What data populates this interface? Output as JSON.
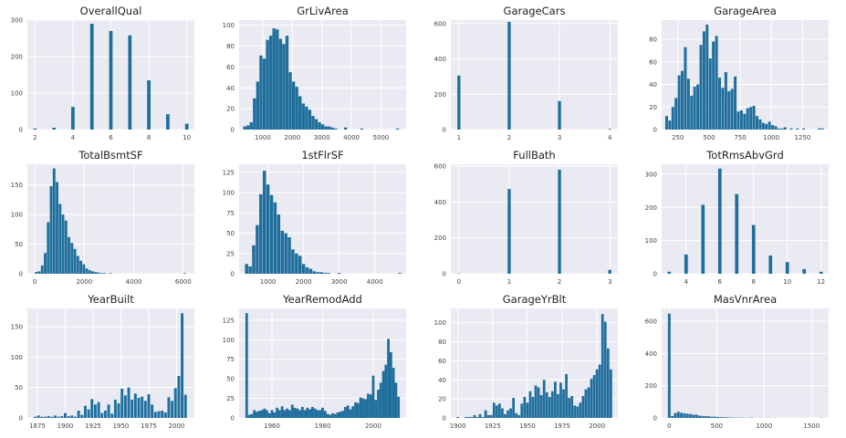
{
  "style": {
    "plot_bg": "#eaeaf2",
    "grid": "#ffffff",
    "bar": "#1f6e9c",
    "text": "#222222",
    "tick": "#444444"
  },
  "chart_data": [
    {
      "type": "bar",
      "title": "OverallQual",
      "grid": true,
      "xlim": [
        1.6,
        10.4
      ],
      "ylim": [
        0,
        300
      ],
      "xticks": [
        2,
        4,
        6,
        8,
        10
      ],
      "yticks": [
        0,
        100,
        200,
        300
      ],
      "bar_width": 0.18,
      "x": [
        2,
        3,
        4,
        5,
        6,
        7,
        8,
        9,
        10
      ],
      "values": [
        3,
        5,
        62,
        290,
        270,
        258,
        135,
        42,
        16
      ]
    },
    {
      "type": "bar",
      "title": "GrLivArea",
      "grid": true,
      "xlim": [
        200,
        5850
      ],
      "ylim": [
        0,
        105
      ],
      "xticks": [
        1000,
        2000,
        3000,
        4000,
        5000
      ],
      "yticks": [
        0,
        20,
        40,
        60,
        80,
        100
      ],
      "bar_width": 104,
      "x": [
        390,
        500,
        610,
        720,
        830,
        940,
        1050,
        1160,
        1270,
        1380,
        1490,
        1600,
        1710,
        1820,
        1930,
        2040,
        2150,
        2260,
        2370,
        2480,
        2590,
        2700,
        2810,
        2920,
        3030,
        3140,
        3250,
        3360,
        3470,
        3580,
        3690,
        3800,
        3910,
        4020,
        4130,
        4240,
        4350,
        4460,
        4570,
        4680,
        4790,
        4900,
        5010,
        5120,
        5230,
        5340,
        5450,
        5560
      ],
      "values": [
        3,
        4,
        7,
        30,
        46,
        71,
        68,
        86,
        90,
        97,
        96,
        87,
        82,
        90,
        55,
        46,
        41,
        32,
        25,
        22,
        19,
        13,
        10,
        7,
        5,
        3,
        3,
        2,
        1,
        0,
        0,
        2,
        0,
        0,
        0,
        0,
        1,
        0,
        0,
        0,
        0,
        0,
        0,
        0,
        0,
        0,
        0,
        1
      ]
    },
    {
      "type": "bar",
      "title": "GarageCars",
      "grid": true,
      "xlim": [
        0.84,
        4.16
      ],
      "ylim": [
        0,
        620
      ],
      "xticks": [
        1,
        2,
        3,
        4
      ],
      "yticks": [
        0,
        200,
        400,
        600
      ],
      "bar_width": 0.06,
      "x": [
        1,
        2,
        3,
        4
      ],
      "values": [
        306,
        610,
        162,
        4
      ]
    },
    {
      "type": "bar",
      "title": "GarageArea",
      "grid": true,
      "xlim": [
        120,
        1460
      ],
      "ylim": [
        0,
        97
      ],
      "xticks": [
        250,
        500,
        750,
        1000,
        1250
      ],
      "yticks": [
        0,
        20,
        40,
        60,
        80
      ],
      "bar_width": 22,
      "x": [
        160,
        185,
        210,
        235,
        260,
        285,
        310,
        335,
        360,
        385,
        410,
        435,
        460,
        485,
        510,
        535,
        560,
        585,
        610,
        635,
        660,
        685,
        710,
        735,
        760,
        785,
        810,
        835,
        860,
        885,
        910,
        935,
        960,
        985,
        1010,
        1035,
        1060,
        1085,
        1110,
        1135,
        1160,
        1185,
        1210,
        1235,
        1260,
        1285,
        1310,
        1335,
        1360,
        1385,
        1410
      ],
      "values": [
        12,
        8,
        20,
        28,
        48,
        52,
        73,
        45,
        30,
        38,
        40,
        75,
        87,
        93,
        63,
        78,
        83,
        46,
        37,
        51,
        34,
        36,
        47,
        16,
        17,
        14,
        19,
        20,
        21,
        12,
        9,
        6,
        5,
        7,
        4,
        3,
        1,
        1,
        2,
        0,
        1,
        0,
        1,
        0,
        1,
        0,
        0,
        0,
        0,
        1,
        1
      ]
    },
    {
      "type": "bar",
      "title": "TotalBsmtSF",
      "grid": true,
      "xlim": [
        -300,
        6450
      ],
      "ylim": [
        0,
        185
      ],
      "xticks": [
        0,
        2000,
        4000,
        6000
      ],
      "yticks": [
        0,
        50,
        100,
        150
      ],
      "bar_width": 106,
      "x": [
        60,
        180,
        300,
        420,
        540,
        660,
        780,
        900,
        1020,
        1140,
        1260,
        1380,
        1500,
        1620,
        1740,
        1860,
        1980,
        2100,
        2220,
        2340,
        2460,
        2580,
        2700,
        2820,
        2940,
        3060,
        3180,
        3300,
        3420,
        3540,
        3660,
        3780,
        3900,
        4020,
        4140,
        4260,
        4380,
        4500,
        4620,
        4740,
        4860,
        4980,
        5100,
        5220,
        5340,
        5460,
        5580,
        5700,
        5820,
        5940,
        6060
      ],
      "values": [
        3,
        4,
        14,
        35,
        87,
        148,
        178,
        155,
        118,
        100,
        90,
        62,
        52,
        42,
        30,
        22,
        16,
        9,
        6,
        4,
        3,
        2,
        1,
        1,
        0,
        1,
        0,
        0,
        0,
        0,
        0,
        0,
        0,
        0,
        0,
        0,
        0,
        0,
        0,
        0,
        0,
        0,
        0,
        0,
        0,
        0,
        0,
        0,
        0,
        0,
        1
      ]
    },
    {
      "type": "bar",
      "title": "1stFlrSF",
      "grid": true,
      "xlim": [
        190,
        4880
      ],
      "ylim": [
        0,
        135
      ],
      "xticks": [
        1000,
        2000,
        3000,
        4000
      ],
      "yticks": [
        0,
        25,
        50,
        75,
        100,
        125
      ],
      "bar_width": 90,
      "x": [
        400,
        500,
        600,
        700,
        800,
        900,
        1000,
        1100,
        1200,
        1300,
        1400,
        1500,
        1600,
        1700,
        1800,
        1900,
        2000,
        2100,
        2200,
        2300,
        2400,
        2500,
        2600,
        2700,
        2800,
        2900,
        3000,
        3100,
        3200,
        3300,
        3400,
        3500,
        3600,
        3700,
        3800,
        3900,
        4000,
        4100,
        4200,
        4300,
        4400,
        4500,
        4600,
        4700
      ],
      "values": [
        12,
        9,
        35,
        60,
        98,
        127,
        110,
        97,
        88,
        73,
        53,
        50,
        45,
        30,
        25,
        22,
        12,
        8,
        6,
        3,
        2,
        2,
        1,
        1,
        0,
        0,
        1,
        0,
        0,
        0,
        0,
        0,
        0,
        0,
        0,
        0,
        0,
        0,
        0,
        0,
        0,
        0,
        0,
        1
      ]
    },
    {
      "type": "bar",
      "title": "FullBath",
      "grid": true,
      "xlim": [
        -0.16,
        3.16
      ],
      "ylim": [
        0,
        610
      ],
      "xticks": [
        0,
        1,
        2,
        3
      ],
      "yticks": [
        0,
        200,
        400,
        600
      ],
      "bar_width": 0.06,
      "x": [
        0,
        1,
        2,
        3
      ],
      "values": [
        2,
        472,
        580,
        22
      ]
    },
    {
      "type": "bar",
      "title": "TotRmsAbvGrd",
      "grid": true,
      "xlim": [
        2.55,
        12.45
      ],
      "ylim": [
        0,
        330
      ],
      "xticks": [
        4,
        6,
        8,
        10,
        12
      ],
      "yticks": [
        0,
        100,
        200,
        300
      ],
      "bar_width": 0.2,
      "x": [
        3,
        4,
        5,
        6,
        7,
        8,
        9,
        10,
        11,
        12
      ],
      "values": [
        6,
        58,
        208,
        317,
        240,
        147,
        55,
        35,
        14,
        6
      ]
    },
    {
      "type": "bar",
      "title": "YearBuilt",
      "grid": true,
      "xlim": [
        1866,
        2016
      ],
      "ylim": [
        0,
        180
      ],
      "xticks": [
        1875,
        1900,
        1925,
        1950,
        1975,
        2000
      ],
      "yticks": [
        0,
        50,
        100,
        150
      ],
      "bar_width": 2.4,
      "x": [
        1873,
        1876,
        1879,
        1882,
        1885,
        1888,
        1891,
        1894,
        1897,
        1900,
        1903,
        1906,
        1909,
        1912,
        1915,
        1918,
        1921,
        1924,
        1927,
        1930,
        1933,
        1936,
        1939,
        1942,
        1945,
        1948,
        1951,
        1954,
        1957,
        1960,
        1963,
        1966,
        1969,
        1972,
        1975,
        1978,
        1981,
        1984,
        1987,
        1990,
        1993,
        1996,
        1999,
        2002,
        2005,
        2008
      ],
      "values": [
        2,
        4,
        2,
        2,
        3,
        2,
        4,
        2,
        3,
        8,
        3,
        4,
        2,
        12,
        5,
        20,
        14,
        31,
        22,
        26,
        8,
        12,
        22,
        7,
        30,
        24,
        48,
        37,
        50,
        30,
        40,
        33,
        35,
        28,
        39,
        22,
        10,
        11,
        12,
        9,
        34,
        28,
        49,
        69,
        172,
        38
      ]
    },
    {
      "type": "bar",
      "title": "YearRemodAdd",
      "grid": true,
      "xlim": [
        1947,
        2013
      ],
      "ylim": [
        0,
        140
      ],
      "xticks": [
        1960,
        1980,
        2000
      ],
      "yticks": [
        0,
        25,
        50,
        75,
        100,
        125
      ],
      "bar_width": 1.0,
      "x": [
        1950,
        1951,
        1952,
        1953,
        1954,
        1955,
        1956,
        1957,
        1958,
        1959,
        1960,
        1961,
        1962,
        1963,
        1964,
        1965,
        1966,
        1967,
        1968,
        1969,
        1970,
        1971,
        1972,
        1973,
        1974,
        1975,
        1976,
        1977,
        1978,
        1979,
        1980,
        1981,
        1982,
        1983,
        1984,
        1985,
        1986,
        1987,
        1988,
        1989,
        1990,
        1991,
        1992,
        1993,
        1994,
        1995,
        1996,
        1997,
        1998,
        1999,
        2000,
        2001,
        2002,
        2003,
        2004,
        2005,
        2006,
        2007,
        2008,
        2009,
        2010
      ],
      "values": [
        134,
        4,
        5,
        10,
        8,
        9,
        10,
        12,
        10,
        6,
        10,
        7,
        13,
        10,
        15,
        10,
        12,
        10,
        17,
        13,
        12,
        10,
        14,
        10,
        13,
        11,
        14,
        12,
        10,
        10,
        13,
        9,
        5,
        4,
        6,
        5,
        7,
        8,
        9,
        14,
        16,
        11,
        15,
        20,
        19,
        26,
        25,
        24,
        31,
        30,
        54,
        23,
        36,
        45,
        60,
        68,
        101,
        84,
        64,
        45,
        27
      ]
    },
    {
      "type": "bar",
      "title": "GarageYrBlt",
      "grid": true,
      "xlim": [
        1895,
        2015
      ],
      "ylim": [
        0,
        115
      ],
      "xticks": [
        1900,
        1925,
        1950,
        1975,
        2000
      ],
      "yticks": [
        0,
        20,
        40,
        60,
        80,
        100
      ],
      "bar_width": 1.8,
      "x": [
        1900,
        1902,
        1904,
        1906,
        1908,
        1910,
        1912,
        1914,
        1916,
        1918,
        1920,
        1922,
        1924,
        1926,
        1928,
        1930,
        1932,
        1934,
        1936,
        1938,
        1940,
        1942,
        1944,
        1946,
        1948,
        1950,
        1952,
        1954,
        1956,
        1958,
        1960,
        1962,
        1964,
        1966,
        1968,
        1970,
        1972,
        1974,
        1976,
        1978,
        1980,
        1982,
        1984,
        1986,
        1988,
        1990,
        1992,
        1994,
        1996,
        1998,
        2000,
        2002,
        2004,
        2006,
        2008,
        2010
      ],
      "values": [
        1,
        0,
        0,
        1,
        1,
        1,
        3,
        1,
        4,
        1,
        8,
        3,
        3,
        16,
        13,
        15,
        10,
        4,
        8,
        10,
        21,
        5,
        3,
        15,
        22,
        16,
        28,
        22,
        34,
        32,
        24,
        40,
        27,
        22,
        28,
        38,
        25,
        37,
        30,
        46,
        21,
        23,
        13,
        12,
        16,
        23,
        30,
        32,
        41,
        45,
        51,
        56,
        109,
        101,
        73,
        51
      ]
    },
    {
      "type": "bar",
      "title": "MasVnrArea",
      "grid": true,
      "xlim": [
        -80,
        1680
      ],
      "ylim": [
        0,
        680
      ],
      "xticks": [
        0,
        500,
        1000,
        1500
      ],
      "yticks": [
        0,
        200,
        400,
        600
      ],
      "bar_width": 28,
      "x": [
        0,
        32,
        64,
        96,
        128,
        160,
        192,
        224,
        256,
        288,
        320,
        352,
        384,
        416,
        448,
        480,
        512,
        544,
        576,
        608,
        640,
        672,
        704,
        736,
        768,
        800,
        832,
        864,
        896,
        928,
        960,
        992,
        1024,
        1056,
        1088,
        1120,
        1152,
        1184,
        1216,
        1248,
        1280,
        1312,
        1344,
        1376,
        1408,
        1440,
        1472,
        1504,
        1536,
        1568,
        1600
      ],
      "values": [
        648,
        12,
        30,
        38,
        32,
        28,
        26,
        24,
        20,
        20,
        14,
        12,
        12,
        10,
        8,
        8,
        6,
        5,
        4,
        4,
        3,
        2,
        2,
        1,
        2,
        1,
        1,
        2,
        1,
        0,
        1,
        0,
        1,
        1,
        0,
        1,
        0,
        0,
        0,
        0,
        0,
        0,
        0,
        0,
        0,
        0,
        0,
        0,
        0,
        0,
        1
      ]
    }
  ]
}
